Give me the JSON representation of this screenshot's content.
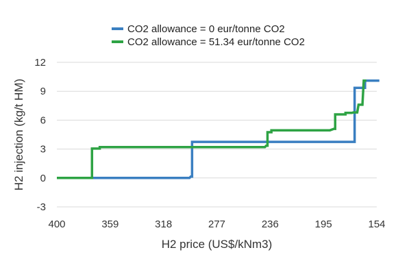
{
  "chart_data": {
    "type": "line",
    "xlabel": "H2 price (US$/kNm3)",
    "ylabel": "H2 injection (kg/t HM)",
    "xlim": [
      400,
      154
    ],
    "x_reversed": true,
    "ylim": [
      -3,
      12
    ],
    "xticks": [
      400,
      359,
      318,
      277,
      236,
      195,
      154
    ],
    "yticks": [
      -3,
      0,
      3,
      6,
      9,
      12
    ],
    "grid": "horizontal",
    "legend_position": "top",
    "series": [
      {
        "name": "CO2 allowance = 0 eur/tonne CO2",
        "color": "#3a7fc1",
        "points": [
          [
            400,
            0
          ],
          [
            298,
            0
          ],
          [
            297,
            0.15
          ],
          [
            296,
            0.15
          ],
          [
            296,
            3.75
          ],
          [
            171,
            3.75
          ],
          [
            171,
            9.35
          ],
          [
            163,
            9.35
          ],
          [
            163,
            10.1
          ],
          [
            152,
            10.1
          ]
        ]
      },
      {
        "name": "CO2 allowance = 51.34 eur/tonne CO2",
        "color": "#2ea344",
        "points": [
          [
            400,
            0
          ],
          [
            373,
            0
          ],
          [
            373,
            3.05
          ],
          [
            367,
            3.05
          ],
          [
            367,
            3.2
          ],
          [
            240,
            3.2
          ],
          [
            239,
            3.35
          ],
          [
            238,
            3.35
          ],
          [
            238,
            4.75
          ],
          [
            235,
            4.75
          ],
          [
            235,
            4.95
          ],
          [
            190,
            4.95
          ],
          [
            187,
            5.1
          ],
          [
            186,
            5.1
          ],
          [
            186,
            6.6
          ],
          [
            178,
            6.6
          ],
          [
            178,
            6.75
          ],
          [
            173,
            6.75
          ],
          [
            172,
            6.8
          ],
          [
            169,
            6.8
          ],
          [
            168,
            7.6
          ],
          [
            165,
            7.6
          ],
          [
            164,
            10.1
          ],
          [
            162,
            10.1
          ]
        ]
      }
    ]
  }
}
